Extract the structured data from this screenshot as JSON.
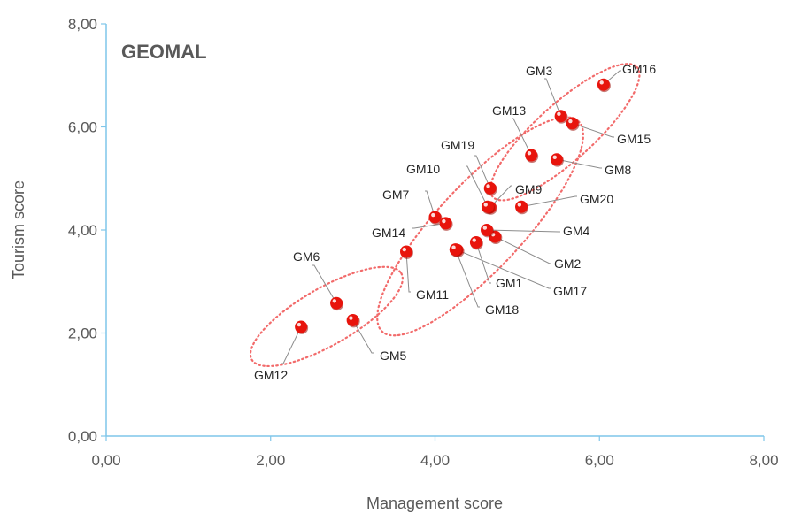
{
  "chart_data": {
    "type": "scatter",
    "title": "GEOMAL",
    "xlabel": "Management score",
    "ylabel": "Tourism score",
    "xlim": [
      0,
      8
    ],
    "ylim": [
      0,
      8
    ],
    "x_ticks": [
      "0,00",
      "2,00",
      "4,00",
      "6,00",
      "8,00"
    ],
    "y_ticks": [
      "0,00",
      "2,00",
      "4,00",
      "6,00",
      "8,00"
    ],
    "grid": false,
    "point_color": "#e8140c",
    "cluster_color": "#f26b6b",
    "axis_color": "#7fc6ea",
    "points": [
      {
        "name": "GM1",
        "x": 4.5,
        "y": 3.76
      },
      {
        "name": "GM2",
        "x": 4.73,
        "y": 3.87
      },
      {
        "name": "GM3",
        "x": 5.53,
        "y": 6.21
      },
      {
        "name": "GM4",
        "x": 4.63,
        "y": 4.0
      },
      {
        "name": "GM5",
        "x": 3.0,
        "y": 2.25
      },
      {
        "name": "GM6",
        "x": 2.8,
        "y": 2.58
      },
      {
        "name": "GM7",
        "x": 4.0,
        "y": 4.25
      },
      {
        "name": "GM8",
        "x": 5.48,
        "y": 5.37
      },
      {
        "name": "GM9",
        "x": 4.67,
        "y": 4.44
      },
      {
        "name": "GM10",
        "x": 4.64,
        "y": 4.45
      },
      {
        "name": "GM11",
        "x": 3.65,
        "y": 3.58
      },
      {
        "name": "GM12",
        "x": 2.37,
        "y": 2.12
      },
      {
        "name": "GM13",
        "x": 5.17,
        "y": 5.45
      },
      {
        "name": "GM14",
        "x": 4.13,
        "y": 4.13
      },
      {
        "name": "GM15",
        "x": 5.67,
        "y": 6.07
      },
      {
        "name": "GM16",
        "x": 6.05,
        "y": 6.82
      },
      {
        "name": "GM17",
        "x": 4.27,
        "y": 3.61
      },
      {
        "name": "GM18",
        "x": 4.25,
        "y": 3.62
      },
      {
        "name": "GM19",
        "x": 4.67,
        "y": 4.81
      },
      {
        "name": "GM20",
        "x": 5.05,
        "y": 4.45
      }
    ],
    "clusters": [
      {
        "cx": 2.68,
        "cy": 2.32,
        "rx": 1.05,
        "ry": 0.55,
        "angle": -30
      },
      {
        "cx": 4.55,
        "cy": 4.07,
        "rx": 1.75,
        "ry": 0.83,
        "angle": -47
      },
      {
        "cx": 5.58,
        "cy": 5.9,
        "rx": 1.18,
        "ry": 0.55,
        "angle": -42
      }
    ]
  }
}
